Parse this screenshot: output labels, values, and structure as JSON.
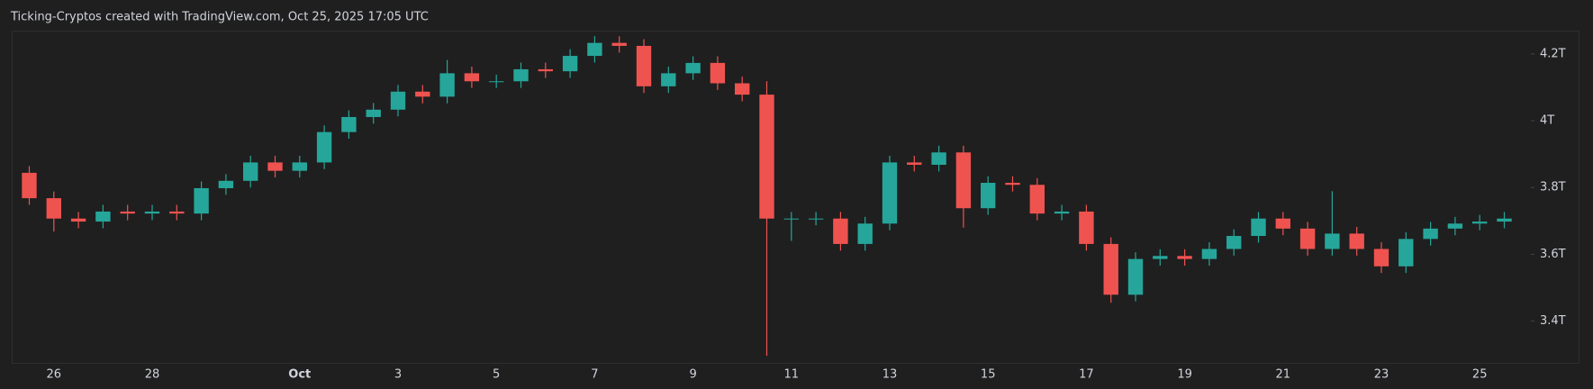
{
  "chart_data": {
    "type": "candlestick",
    "title": "Ticking-Cryptos created with TradingView.com, Oct 25, 2025 17:05 UTC",
    "categories": [
      null,
      "26",
      null,
      null,
      null,
      "28",
      null,
      null,
      null,
      null,
      null,
      "Oct",
      null,
      null,
      null,
      "3",
      null,
      null,
      null,
      "5",
      null,
      null,
      null,
      "7",
      null,
      null,
      null,
      "9",
      null,
      null,
      null,
      "11",
      null,
      null,
      null,
      "13",
      null,
      null,
      null,
      "15",
      null,
      null,
      null,
      "17",
      null,
      null,
      null,
      "19",
      null,
      null,
      null,
      "21",
      null,
      null,
      null,
      "23",
      null,
      null,
      null,
      "25",
      null
    ],
    "open": [
      3.844,
      3.768,
      3.707,
      3.698,
      3.728,
      3.722,
      3.728,
      3.722,
      3.798,
      3.82,
      3.875,
      3.85,
      3.875,
      3.966,
      4.011,
      4.033,
      4.087,
      4.072,
      4.142,
      4.118,
      4.118,
      4.154,
      4.148,
      4.194,
      4.233,
      4.224,
      4.103,
      4.142,
      4.173,
      4.112,
      4.078,
      3.707,
      3.707,
      3.707,
      3.631,
      3.692,
      3.875,
      3.868,
      3.905,
      3.738,
      3.814,
      3.808,
      3.722,
      3.728,
      3.631,
      3.479,
      3.586,
      3.595,
      3.586,
      3.616,
      3.655,
      3.707,
      3.677,
      3.616,
      3.662,
      3.616,
      3.564,
      3.646,
      3.677,
      3.692,
      3.698
    ],
    "high": [
      3.864,
      3.788,
      3.727,
      3.748,
      3.748,
      3.748,
      3.748,
      3.818,
      3.84,
      3.895,
      3.895,
      3.895,
      3.986,
      4.031,
      4.053,
      4.107,
      4.107,
      4.182,
      4.162,
      4.138,
      4.174,
      4.174,
      4.214,
      4.253,
      4.253,
      4.244,
      4.162,
      4.193,
      4.193,
      4.132,
      4.118,
      3.727,
      3.727,
      3.727,
      3.712,
      3.895,
      3.895,
      3.925,
      3.925,
      3.834,
      3.834,
      3.828,
      3.748,
      3.748,
      3.651,
      3.606,
      3.615,
      3.615,
      3.636,
      3.675,
      3.727,
      3.727,
      3.697,
      3.789,
      3.682,
      3.636,
      3.666,
      3.697,
      3.712,
      3.718,
      3.727
    ],
    "low": [
      3.748,
      3.668,
      3.678,
      3.678,
      3.702,
      3.702,
      3.702,
      3.702,
      3.778,
      3.8,
      3.83,
      3.83,
      3.855,
      3.946,
      3.991,
      4.013,
      4.052,
      4.052,
      4.098,
      4.098,
      4.098,
      4.128,
      4.128,
      4.174,
      4.204,
      4.083,
      4.083,
      4.122,
      4.092,
      4.058,
      3.296,
      3.64,
      3.687,
      3.611,
      3.611,
      3.672,
      3.848,
      3.848,
      3.68,
      3.718,
      3.788,
      3.702,
      3.702,
      3.611,
      3.455,
      3.459,
      3.566,
      3.566,
      3.566,
      3.596,
      3.635,
      3.657,
      3.596,
      3.596,
      3.596,
      3.544,
      3.544,
      3.626,
      3.657,
      3.672,
      3.678
    ],
    "close": [
      3.768,
      3.707,
      3.698,
      3.728,
      3.722,
      3.728,
      3.722,
      3.798,
      3.82,
      3.875,
      3.85,
      3.875,
      3.966,
      4.011,
      4.033,
      4.087,
      4.072,
      4.142,
      4.118,
      4.118,
      4.154,
      4.148,
      4.194,
      4.233,
      4.224,
      4.103,
      4.142,
      4.173,
      4.112,
      4.078,
      3.707,
      3.707,
      3.707,
      3.631,
      3.692,
      3.875,
      3.868,
      3.905,
      3.738,
      3.814,
      3.808,
      3.722,
      3.728,
      3.631,
      3.479,
      3.586,
      3.595,
      3.586,
      3.616,
      3.655,
      3.707,
      3.677,
      3.616,
      3.662,
      3.616,
      3.564,
      3.646,
      3.677,
      3.692,
      3.698,
      3.707
    ],
    "up_color": "#26a69a",
    "down_color": "#ef5350",
    "ylim": [
      3.283,
      4.267
    ],
    "yticks": [
      {
        "value": 3.4,
        "label": "3.4T"
      },
      {
        "value": 3.6,
        "label": "3.6T"
      },
      {
        "value": 3.8,
        "label": "3.8T"
      },
      {
        "value": 4,
        "label": "4T"
      },
      {
        "value": 4.2,
        "label": "4.2T"
      }
    ],
    "grid": false
  }
}
